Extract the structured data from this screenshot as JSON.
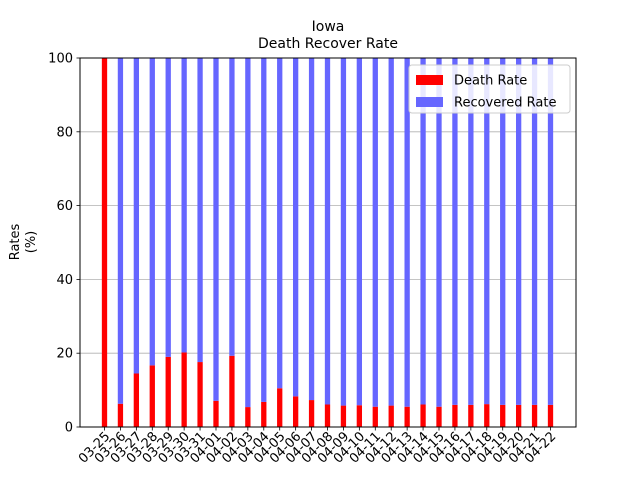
{
  "chart_data": {
    "type": "bar",
    "stacked": true,
    "title": "Iowa",
    "subtitle": "Death Recover Rate",
    "xlabel": "",
    "ylabel": "Rates\n(%)",
    "ylabel_lines": [
      "Rates",
      "(%)"
    ],
    "ylim": [
      0,
      100
    ],
    "yticks": [
      0,
      20,
      40,
      60,
      80,
      100
    ],
    "grid": "y",
    "legend_position": "upper right",
    "categories": [
      "03-25",
      "03-26",
      "03-27",
      "03-28",
      "03-29",
      "03-30",
      "03-31",
      "04-01",
      "04-02",
      "04-03",
      "04-04",
      "04-05",
      "04-06",
      "04-07",
      "04-08",
      "04-09",
      "04-10",
      "04-11",
      "04-12",
      "04-13",
      "04-14",
      "04-15",
      "04-16",
      "04-17",
      "04-18",
      "04-19",
      "04-20",
      "04-21",
      "04-22"
    ],
    "series": [
      {
        "name": "Death Rate",
        "color": "#ff0000",
        "values": [
          100,
          6.3,
          14.5,
          16.7,
          19.0,
          20.2,
          17.6,
          7.1,
          19.3,
          5.4,
          6.8,
          10.5,
          8.3,
          7.3,
          6.1,
          5.8,
          5.9,
          5.5,
          5.8,
          5.5,
          6.1,
          5.5,
          6.0,
          6.0,
          6.2,
          6.0,
          6.0,
          6.0,
          6.0
        ]
      },
      {
        "name": "Recovered Rate",
        "color": "#6666ff",
        "values": [
          0,
          93.7,
          85.5,
          83.3,
          81.0,
          79.8,
          82.4,
          92.9,
          80.7,
          94.6,
          93.2,
          89.5,
          91.7,
          92.7,
          93.9,
          94.2,
          94.1,
          94.5,
          94.2,
          94.5,
          93.9,
          94.5,
          94.0,
          94.0,
          93.8,
          94.0,
          94.0,
          94.0,
          94.0
        ]
      }
    ]
  }
}
